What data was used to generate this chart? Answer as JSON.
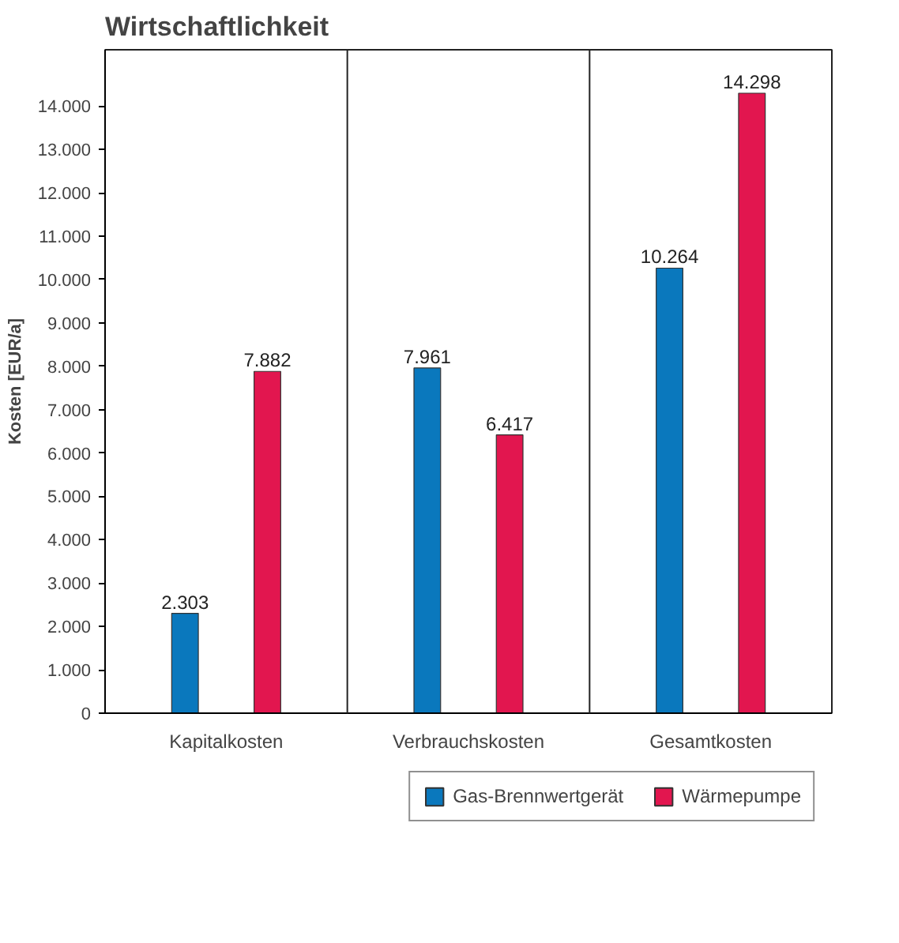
{
  "chart_data": {
    "type": "bar",
    "title": "Wirtschaftlichkeit",
    "ylabel": "Kosten [EUR/a]",
    "categories": [
      "Kapitalkosten",
      "Verbrauchskosten",
      "Gesamtkosten"
    ],
    "series": [
      {
        "name": "Gas-Brennwertgerät",
        "color": "#0a78bd",
        "values": [
          2303,
          7961,
          10264
        ],
        "value_labels": [
          "2.303",
          "7.961",
          "10.264"
        ]
      },
      {
        "name": "Wärmepumpe",
        "color": "#e2164f",
        "values": [
          7882,
          6417,
          14298
        ],
        "value_labels": [
          "7.882",
          "6.417",
          "14.298"
        ]
      }
    ],
    "ylim": [
      0,
      15300
    ],
    "yticks": [
      0,
      {
        "value": 1000,
        "label": "1.000"
      },
      {
        "value": 2000,
        "label": "2.000"
      },
      {
        "value": 3000,
        "label": "3.000"
      },
      {
        "value": 4000,
        "label": "4.000"
      },
      {
        "value": 5000,
        "label": "5.000"
      },
      {
        "value": 6000,
        "label": "6.000"
      },
      {
        "value": 7000,
        "label": "7.000"
      },
      {
        "value": 8000,
        "label": "8.000"
      },
      {
        "value": 9000,
        "label": "9.000"
      },
      {
        "value": 10000,
        "label": "10.000"
      },
      {
        "value": 11000,
        "label": "11.000"
      },
      {
        "value": 12000,
        "label": "12.000"
      },
      {
        "value": 13000,
        "label": "13.000"
      },
      {
        "value": 14000,
        "label": "14.000"
      }
    ],
    "grid": "x",
    "legend": "bottom right"
  }
}
